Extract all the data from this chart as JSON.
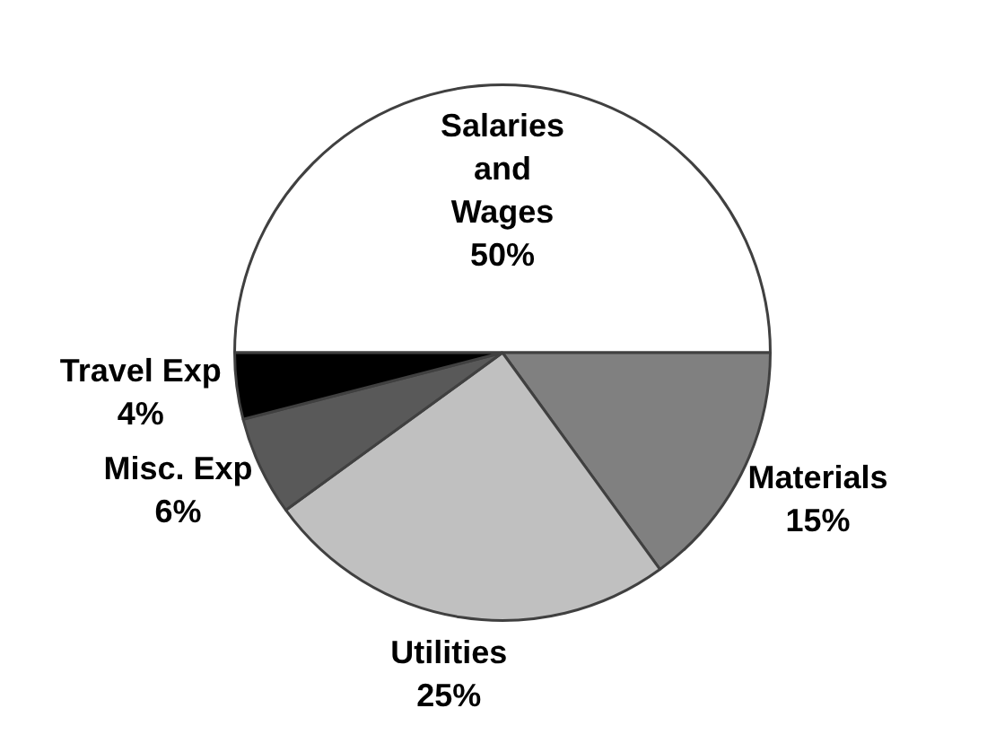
{
  "chart_data": {
    "type": "pie",
    "categories": [
      "Salaries and Wages",
      "Materials",
      "Utilities",
      "Misc. Exp",
      "Travel Exp"
    ],
    "values": [
      50,
      15,
      25,
      6,
      4
    ],
    "value_labels": [
      "50%",
      "15%",
      "25%",
      "6%",
      "4%"
    ],
    "colors": [
      "#ffffff",
      "#808080",
      "#c0c0c0",
      "#595959",
      "#000000"
    ],
    "legend": false
  }
}
